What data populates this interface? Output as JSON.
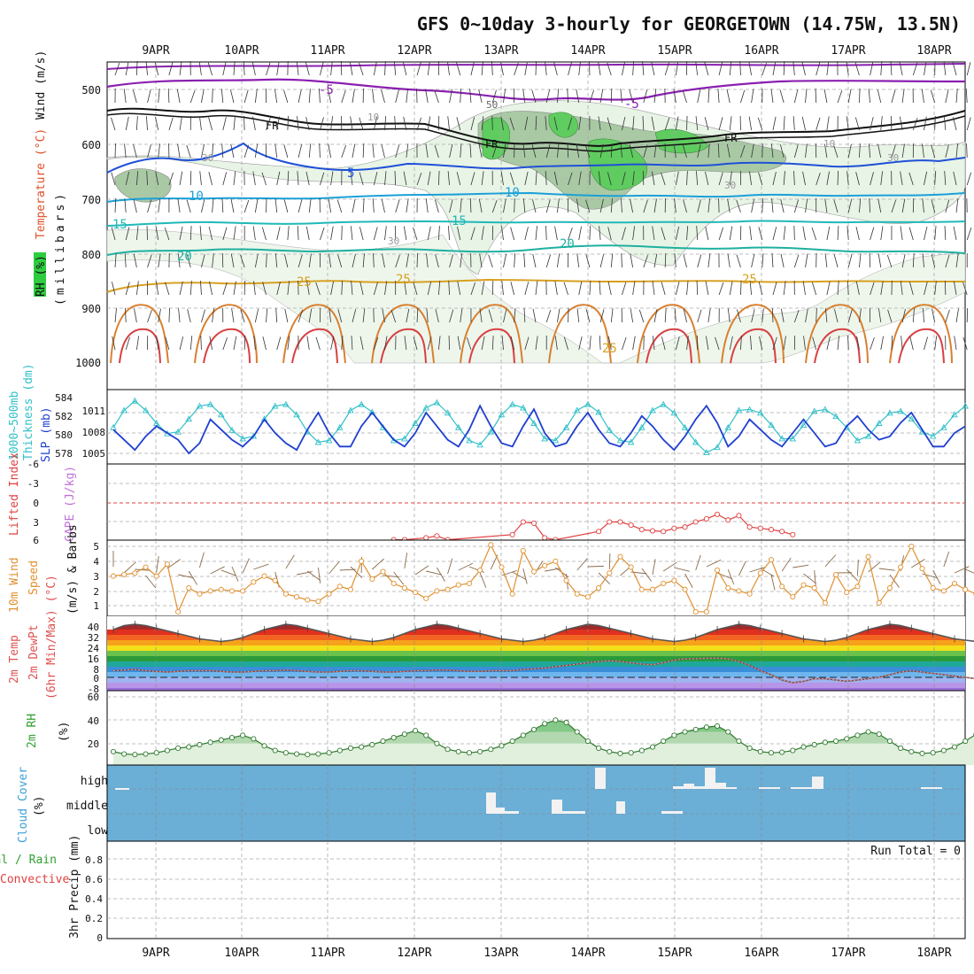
{
  "title": "GFS 0~10day 3-hourly for GEORGETOWN (14.75W, 13.5N)",
  "dates": [
    "9APR",
    "10APR",
    "11APR",
    "12APR",
    "13APR",
    "14APR",
    "15APR",
    "16APR",
    "17APR",
    "18APR"
  ],
  "colors": {
    "grid": "#aaaaaa",
    "temp_purple": "#8a1fb0",
    "temp_blue": "#1f50d8",
    "temp_cyan": "#1ba0d8",
    "temp_teal": "#1fb0a0",
    "temp_orange": "#d8a020",
    "slp": "#1f3fd0",
    "thickness": "#30c0c8",
    "li": "#e04040",
    "wind": "#e09030",
    "rh": "#30a030",
    "cloud_bg": "#6baed6"
  },
  "chart_data": [
    {
      "type": "contour",
      "panel": "upper-air",
      "ylabel_parts": [
        "RH (%)",
        "Temperature (°C)",
        "Wind (m/s)"
      ],
      "axis_label": "(millibars)",
      "yticks": [
        500,
        600,
        700,
        800,
        900,
        1000
      ],
      "ylim": [
        450,
        1000
      ],
      "isotherm_labels": [
        "-5",
        "-5",
        "FR",
        "FR",
        "FR",
        "5",
        "10",
        "10",
        "15",
        "15",
        "20",
        "20",
        "25",
        "25",
        "25",
        "25"
      ],
      "rh_labels": [
        "30",
        "30",
        "30",
        "30",
        "10",
        "10",
        "50"
      ]
    },
    {
      "type": "line",
      "panel": "slp-thickness",
      "ylabel_parts": [
        "1000~500mb",
        "Thickness (dm)",
        "SLP (mb)"
      ],
      "left_ticks": [
        "584",
        "582",
        "580",
        "578"
      ],
      "right_ticks": [
        "1011",
        "1008",
        "1005"
      ],
      "series": [
        {
          "name": "SLP (mb)",
          "values": [
            1008.5,
            1007,
            1005.5,
            1007.5,
            1009,
            1008,
            1007,
            1005,
            1006.5,
            1010,
            1008.5,
            1007,
            1006,
            1007.5,
            1010,
            1008,
            1006.5,
            1005.5,
            1008.5,
            1011,
            1008,
            1006,
            1006,
            1009,
            1011,
            1009,
            1007,
            1006,
            1008,
            1011,
            1009,
            1007,
            1006,
            1008.5,
            1012,
            1009,
            1006.5,
            1006,
            1009,
            1011.5,
            1008,
            1006,
            1006.5,
            1009,
            1011,
            1008.5,
            1006.5,
            1006,
            1008,
            1010.5,
            1009,
            1007,
            1005.5,
            1007.5,
            1010,
            1012,
            1009.5,
            1006,
            1007.5,
            1010,
            1008.5,
            1007,
            1006,
            1008,
            1010,
            1008,
            1006,
            1006.5,
            1009,
            1010.5,
            1008.5,
            1007,
            1007.5,
            1009.5,
            1011,
            1008.5,
            1006,
            1006,
            1008,
            1009
          ]
        },
        {
          "name": "1000~500mb Thickness (dm)",
          "values": [
            580.5,
            582.5,
            583.6,
            582.5,
            581,
            579.8,
            580,
            581.5,
            583,
            583.2,
            582,
            580.2,
            579.2,
            579.5,
            581.5,
            583,
            583.2,
            582,
            580,
            578.8,
            579,
            580.5,
            582.5,
            583.2,
            582.3,
            580.5,
            579,
            579.2,
            581,
            582.8,
            583.4,
            582.2,
            580.5,
            579,
            578.5,
            580,
            582,
            583.2,
            582.8,
            581,
            579.2,
            579,
            580.5,
            582.5,
            583.2,
            582.3,
            580.2,
            579,
            578.8,
            580.5,
            582.5,
            583.2,
            582.2,
            580.5,
            578.8,
            577.6,
            578.2,
            580.5,
            582.5,
            582.6,
            582.2,
            580.8,
            579.2,
            579.2,
            580.8,
            582.4,
            582.6,
            581.8,
            580.5,
            579,
            579.5,
            581,
            582.2,
            582.4,
            581.5,
            580,
            579.5,
            580.5,
            582,
            583
          ]
        }
      ]
    },
    {
      "type": "line",
      "panel": "stability",
      "ylabel_parts": [
        "Lifted Index",
        "CAPE (J/kg)"
      ],
      "yticks": [
        "6",
        "3",
        "0",
        "-3",
        "-6"
      ],
      "ylim": [
        6,
        -6
      ],
      "series": [
        {
          "name": "Lifted Index",
          "points": [
            [
              26,
              5.8
            ],
            [
              27,
              5.8
            ],
            [
              29,
              5.5
            ],
            [
              30,
              5.2
            ],
            [
              31,
              5.8
            ],
            [
              37,
              5
            ],
            [
              38,
              3
            ],
            [
              39,
              3.2
            ],
            [
              40,
              5.5
            ],
            [
              41,
              5.8
            ],
            [
              45,
              4.5
            ],
            [
              46,
              3
            ],
            [
              47,
              3
            ],
            [
              48,
              3.5
            ],
            [
              49,
              4.2
            ],
            [
              50,
              4.4
            ],
            [
              51,
              4.5
            ],
            [
              52,
              4
            ],
            [
              53,
              3.8
            ],
            [
              54,
              3
            ],
            [
              55,
              2.5
            ],
            [
              56,
              1.8
            ],
            [
              57,
              2.7
            ],
            [
              58,
              2
            ],
            [
              59,
              3.8
            ],
            [
              60,
              4
            ],
            [
              61,
              4.2
            ],
            [
              62,
              4.5
            ],
            [
              63,
              5
            ]
          ]
        }
      ]
    },
    {
      "type": "line",
      "panel": "wind",
      "ylabel_parts": [
        "10m Wind",
        "Speed",
        "(m/s) & Barbs"
      ],
      "yticks": [
        "5",
        "4",
        "3",
        "2",
        "1"
      ],
      "ylim": [
        0.5,
        5.2
      ],
      "series": [
        {
          "name": "10m Wind Speed",
          "values": [
            3,
            3.1,
            3.2,
            3.6,
            3,
            3.8,
            0.6,
            2.2,
            1.8,
            2,
            2.1,
            2,
            2,
            2.6,
            3,
            2.7,
            1.8,
            1.6,
            1.4,
            1.3,
            1.8,
            2.3,
            2.1,
            4,
            2.8,
            3.3,
            2.5,
            2.2,
            1.9,
            1.5,
            2,
            2.1,
            2.4,
            2.5,
            3.4,
            5.1,
            3.6,
            1.8,
            4.7,
            3.3,
            3.7,
            4,
            2.7,
            1.8,
            1.6,
            2.2,
            3.2,
            4.3,
            3.6,
            2.1,
            2.1,
            2.5,
            2.7,
            2.1,
            0.6,
            0.6,
            3.4,
            2.2,
            2,
            1.8,
            3.2,
            4.1,
            2.3,
            1.6,
            2.4,
            2.2,
            1.2,
            3.1,
            1.9,
            2.3,
            4.3,
            1.2,
            2.2,
            3.6,
            5,
            3.5,
            2.2,
            2,
            2.5,
            2.1,
            1.8,
            2.2,
            4.7,
            2.9,
            3.5,
            3,
            2.2,
            1.2,
            1.8,
            3.9,
            4.4,
            2.5,
            2.4
          ]
        }
      ]
    },
    {
      "type": "area",
      "panel": "temperature",
      "ylabel_parts": [
        "2m Temp",
        "2m DewPt",
        "(6hr Min/Max) (°C)"
      ],
      "yticks": [
        "40",
        "32",
        "24",
        "16",
        "8",
        "0",
        "-8"
      ],
      "ylim": [
        -11,
        44
      ],
      "series": [
        {
          "name": "2m Temp",
          "values": [
            36,
            39,
            40,
            39,
            37,
            35,
            33,
            31,
            29,
            28,
            27,
            28,
            30,
            33,
            36,
            38,
            40,
            39,
            37,
            35,
            33,
            31,
            29,
            28,
            27,
            28,
            30,
            33,
            36,
            38,
            40,
            39,
            37,
            35,
            33,
            31,
            29,
            28,
            27,
            28,
            30,
            33,
            36,
            38,
            40,
            39,
            37,
            35,
            33,
            31,
            29,
            28,
            27,
            28,
            30,
            33,
            36,
            38,
            40,
            39,
            37,
            35,
            33,
            31,
            29,
            28,
            27,
            28,
            30,
            33,
            36,
            38,
            40,
            39,
            37,
            35,
            33,
            31,
            29,
            28,
            27,
            28,
            30,
            33,
            36,
            38,
            40,
            39,
            37,
            35,
            33,
            31,
            29,
            28,
            27
          ]
        },
        {
          "name": "2m DewPt",
          "values": [
            5,
            5.5,
            6,
            5,
            4.5,
            4,
            4.5,
            5,
            5,
            5,
            4.5,
            4,
            4,
            4.5,
            5,
            5,
            5.5,
            5,
            4.5,
            4,
            4,
            4.5,
            5,
            5,
            4.5,
            4,
            4,
            4.5,
            5,
            5,
            5.5,
            5.5,
            5,
            4.5,
            4.5,
            5,
            5,
            5,
            6,
            6.5,
            7,
            8,
            9,
            10,
            11,
            12,
            12.5,
            12,
            11,
            10,
            9.5,
            11,
            13,
            14,
            14,
            14.5,
            14.5,
            14,
            12,
            9,
            5,
            2,
            -2,
            -4,
            -3,
            -1,
            -1,
            -2,
            -3,
            -2,
            -1,
            0,
            2,
            4,
            5,
            4,
            3,
            2,
            1,
            0,
            -1,
            -2,
            -3,
            -2,
            -1,
            1,
            3,
            6,
            8,
            9,
            10,
            10,
            10.5
          ]
        }
      ]
    },
    {
      "type": "area",
      "panel": "relative-humidity",
      "ylabel_parts": [
        "2m RH",
        "(%)"
      ],
      "yticks": [
        "60",
        "40",
        "20"
      ],
      "ylim": [
        0,
        62
      ],
      "series": [
        {
          "name": "2m RH",
          "values": [
            13,
            11,
            10.5,
            11,
            12,
            14,
            16,
            17,
            19,
            21,
            23,
            25,
            27,
            24,
            18,
            14,
            12,
            11,
            10.5,
            11,
            12,
            14,
            16,
            17,
            19,
            22,
            25,
            28,
            31,
            27,
            20,
            15,
            13,
            12,
            13,
            15,
            18,
            22,
            27,
            32,
            37,
            40,
            38,
            30,
            22,
            16,
            13,
            11.5,
            12,
            14,
            17,
            22,
            27,
            30,
            32,
            34,
            35,
            30,
            22,
            16,
            13,
            12,
            12.5,
            14,
            17,
            19,
            21,
            22,
            24,
            27,
            30,
            28,
            22,
            16,
            13,
            11.5,
            12,
            14,
            17,
            22,
            28,
            36,
            46,
            54,
            56,
            48,
            38,
            28,
            20,
            15,
            14
          ]
        }
      ]
    },
    {
      "type": "bar",
      "panel": "cloud-cover",
      "ylabel_parts": [
        "Cloud Cover",
        "(%)"
      ],
      "ylevels": [
        "high",
        "middle",
        "low"
      ]
    },
    {
      "type": "bar",
      "panel": "precipitation",
      "ylabel_parts": [
        "Total / Rain",
        "Convective",
        "3hr Precip (mm)"
      ],
      "yticks": [
        "0.8",
        "0.6",
        "0.4",
        "0.2",
        "0"
      ],
      "ylim": [
        0,
        0.9
      ],
      "run_total": "Run Total = 0",
      "values": []
    }
  ]
}
